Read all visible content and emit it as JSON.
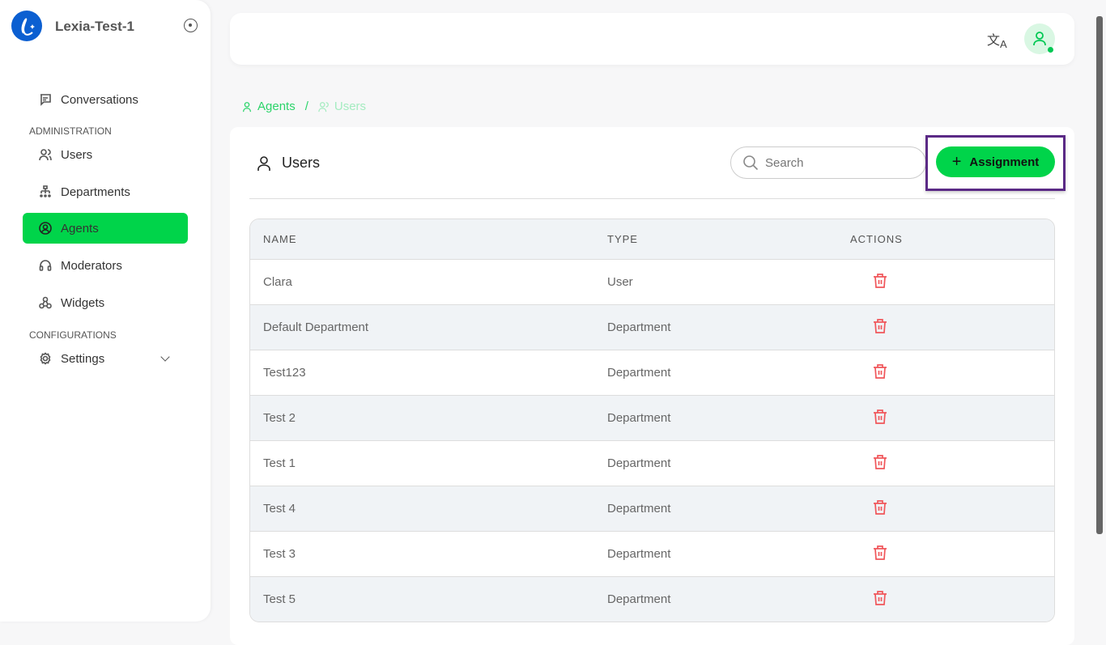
{
  "app": {
    "name": "Lexia-Test-1"
  },
  "sidebar": {
    "conversations": "Conversations",
    "admin_section": "ADMINISTRATION",
    "items": [
      {
        "label": "Users",
        "icon": "users-icon"
      },
      {
        "label": "Departments",
        "icon": "sitemap-icon"
      },
      {
        "label": "Agents",
        "icon": "user-circle-icon",
        "active": true
      },
      {
        "label": "Moderators",
        "icon": "headset-icon"
      },
      {
        "label": "Widgets",
        "icon": "widgets-icon"
      }
    ],
    "config_section": "CONFIGURATIONS",
    "settings": "Settings"
  },
  "topbar": {
    "language_icon": "translate-icon",
    "avatar_status": "online"
  },
  "breadcrumb": {
    "parent": "Agents",
    "separator": "/",
    "current": "Users"
  },
  "main": {
    "title": "Users",
    "search_placeholder": "Search",
    "assign_button": "Assignment",
    "columns": [
      "NAME",
      "TYPE",
      "ACTIONS"
    ],
    "rows": [
      {
        "name": "Clara",
        "type": "User"
      },
      {
        "name": "Default Department",
        "type": "Department"
      },
      {
        "name": "Test123",
        "type": "Department"
      },
      {
        "name": "Test 2",
        "type": "Department"
      },
      {
        "name": "Test 1",
        "type": "Department"
      },
      {
        "name": "Test 4",
        "type": "Department"
      },
      {
        "name": "Test 3",
        "type": "Department"
      },
      {
        "name": "Test 5",
        "type": "Department"
      }
    ]
  },
  "colors": {
    "accent": "#00d44a",
    "delete": "#f0565a",
    "highlight": "#5b2a86",
    "logo": "#0b5fd1"
  }
}
